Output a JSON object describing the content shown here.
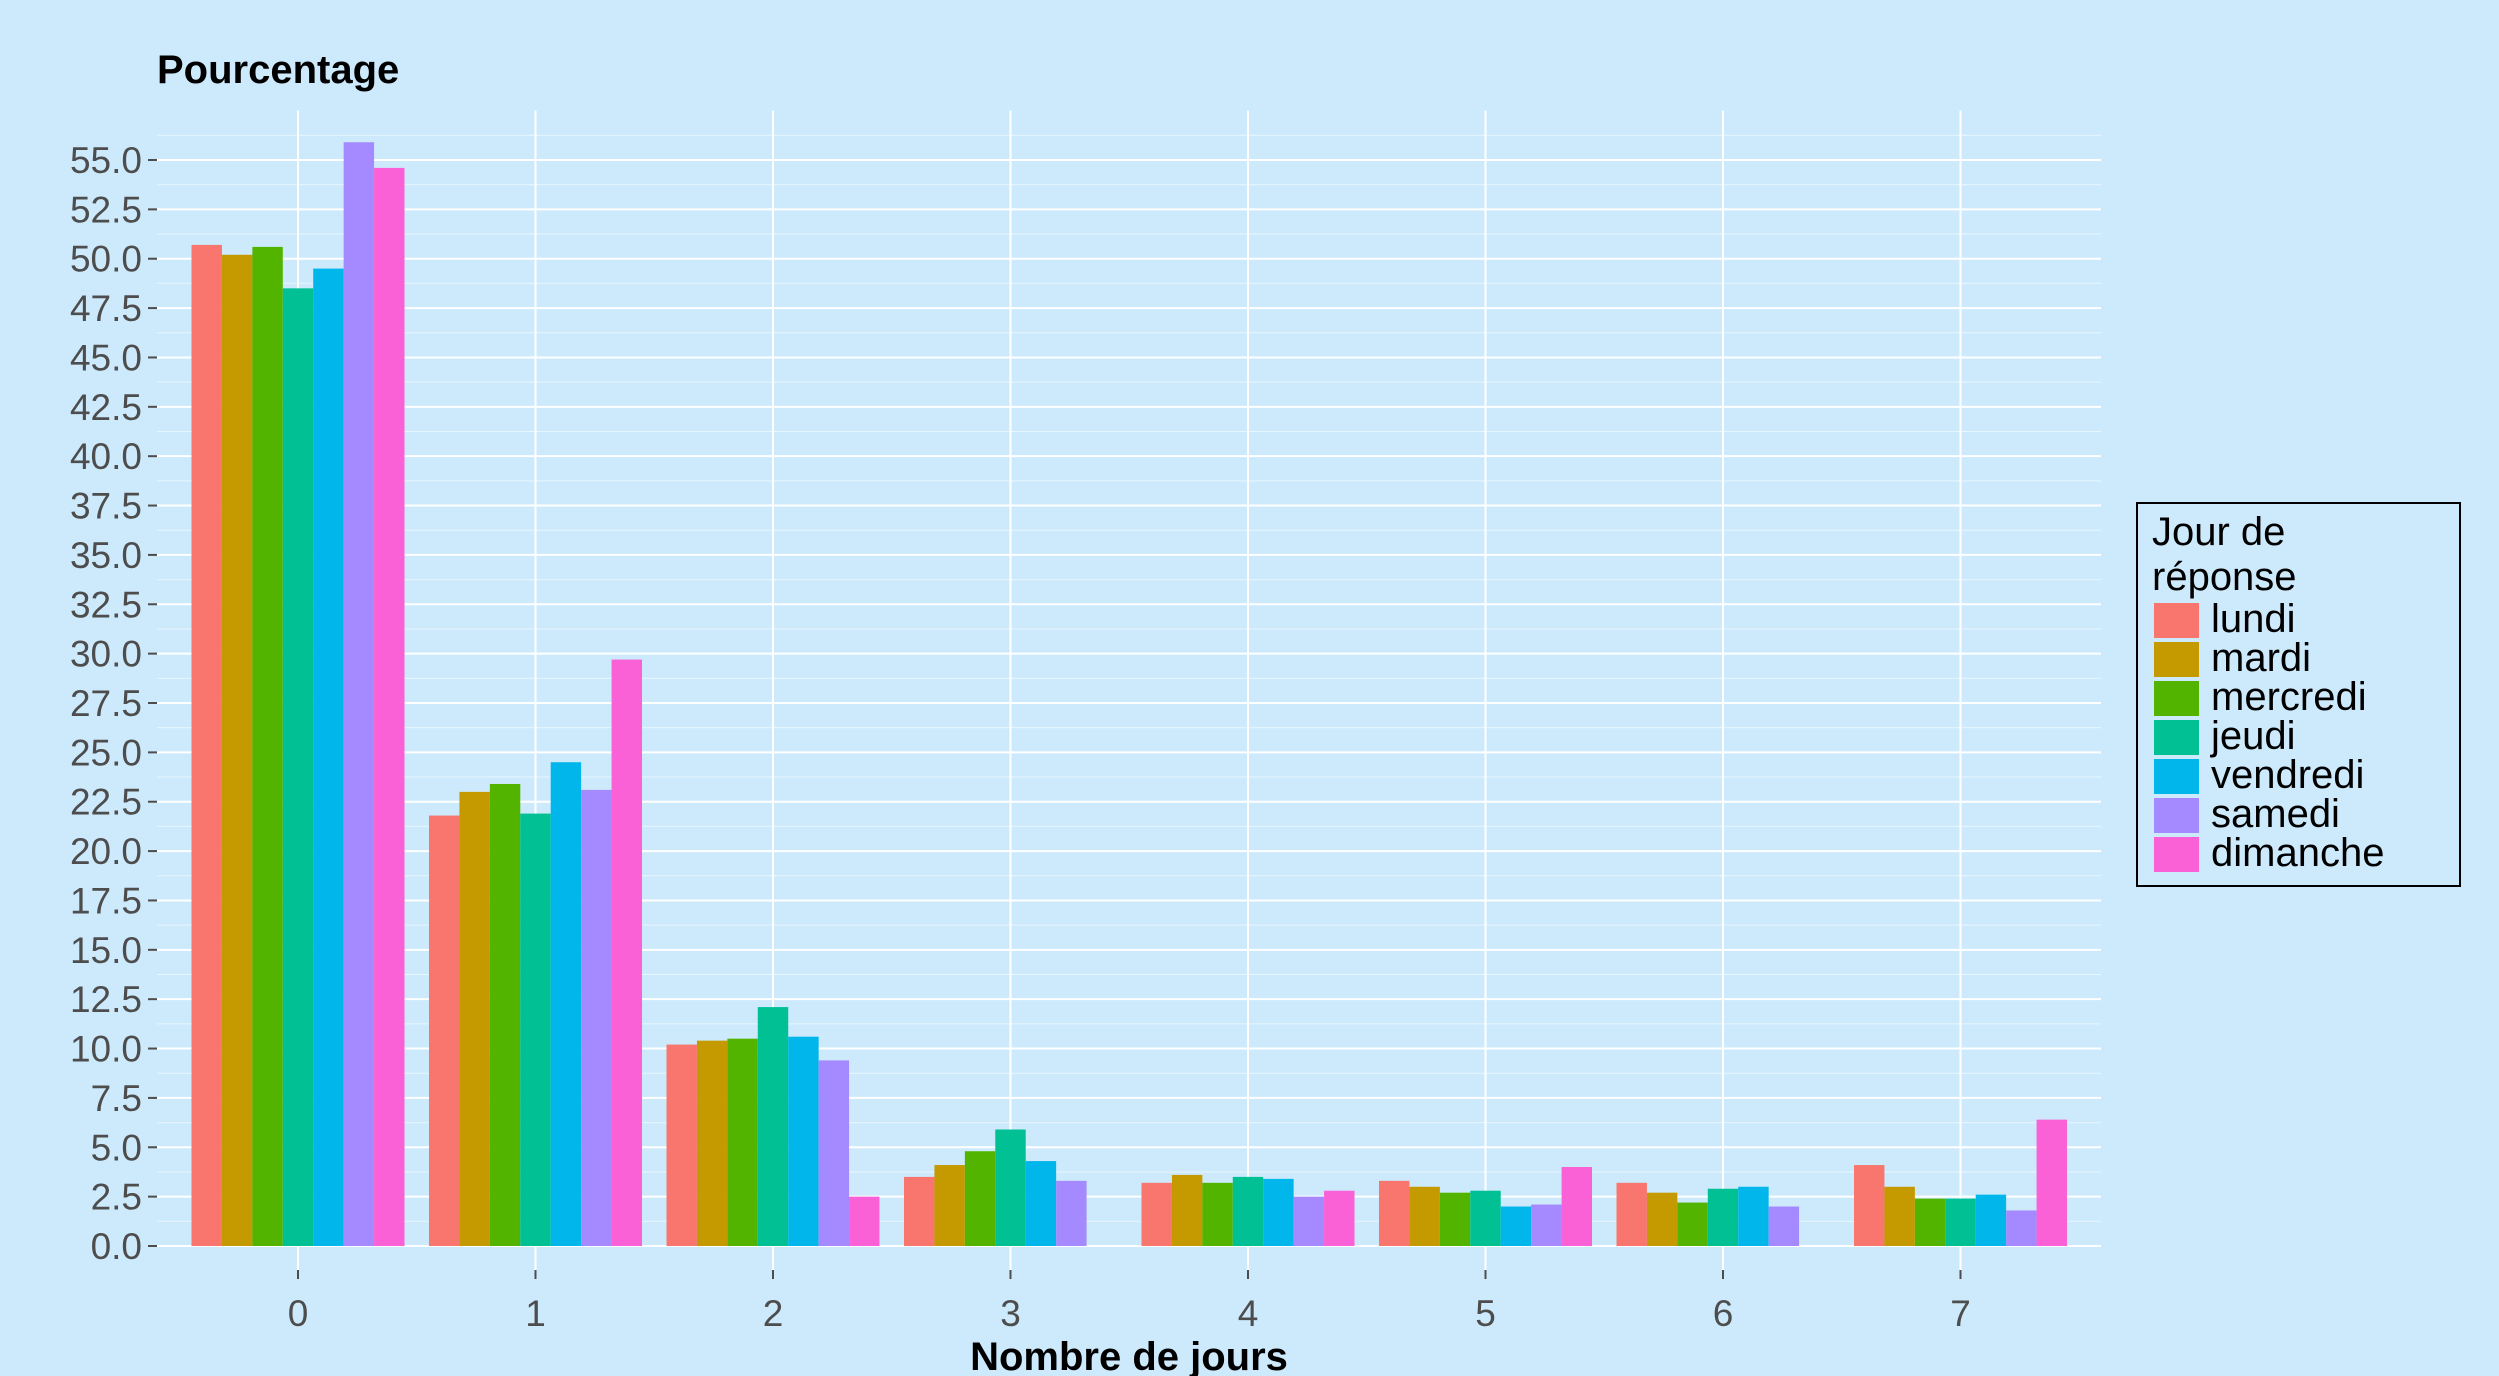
{
  "chart_data": {
    "type": "bar",
    "title": "",
    "ylabel": "Pourcentage",
    "xlabel": "Nombre de jours",
    "categories": [
      "0",
      "1",
      "2",
      "3",
      "4",
      "5",
      "6",
      "7"
    ],
    "ylim": [
      0,
      57.5
    ],
    "yticks": [
      "0.0",
      "2.5",
      "5.0",
      "7.5",
      "10.0",
      "12.5",
      "15.0",
      "17.5",
      "20.0",
      "22.5",
      "25.0",
      "27.5",
      "30.0",
      "32.5",
      "35.0",
      "37.5",
      "40.0",
      "42.5",
      "45.0",
      "47.5",
      "50.0",
      "52.5",
      "55.0"
    ],
    "grid": true,
    "legend": {
      "title": [
        "Jour de",
        "réponse"
      ],
      "position": "right"
    },
    "series": [
      {
        "name": "lundi",
        "color": "#f8766d",
        "values": [
          50.7,
          21.8,
          10.2,
          3.5,
          3.2,
          3.3,
          3.2,
          4.1
        ]
      },
      {
        "name": "mardi",
        "color": "#c49a00",
        "values": [
          50.2,
          23.0,
          10.4,
          4.1,
          3.6,
          3.0,
          2.7,
          3.0
        ]
      },
      {
        "name": "mercredi",
        "color": "#53b400",
        "values": [
          50.6,
          23.4,
          10.5,
          4.8,
          3.2,
          2.7,
          2.2,
          2.4
        ]
      },
      {
        "name": "jeudi",
        "color": "#00c094",
        "values": [
          48.5,
          21.9,
          12.1,
          5.9,
          3.5,
          2.8,
          2.9,
          2.4
        ]
      },
      {
        "name": "vendredi",
        "color": "#00b6eb",
        "values": [
          49.5,
          24.5,
          10.6,
          4.3,
          3.4,
          2.0,
          3.0,
          2.6
        ]
      },
      {
        "name": "samedi",
        "color": "#a58aff",
        "values": [
          55.9,
          23.1,
          9.4,
          3.3,
          2.5,
          2.1,
          2.0,
          1.8
        ]
      },
      {
        "name": "dimanche",
        "color": "#fb61d7",
        "values": [
          54.6,
          29.7,
          2.5,
          0,
          2.8,
          4.0,
          0,
          6.4
        ]
      }
    ]
  }
}
